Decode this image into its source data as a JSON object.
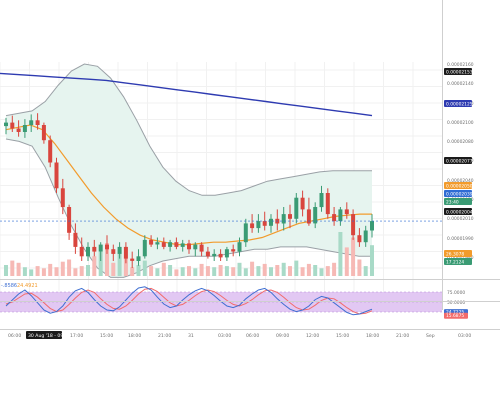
{
  "chart_data": {
    "type": "candlestick",
    "title": "",
    "colors": {
      "up": "#3a9b74",
      "down": "#d9453d",
      "ma_long": "#2e3bb1",
      "ma_short": "#f29b2c",
      "bands": "#9aa0a6",
      "band_fill": "#e6f4ef",
      "stoch_k": "#3f6fd1",
      "stoch_d": "#f26b6b",
      "stoch_band": "#e2c8f3",
      "vol_up": "#a8dac7",
      "vol_down": "#f6b9b5",
      "current_price": "#2f6bd3"
    },
    "time_axis": {
      "ticks": [
        "06:00",
        "30 Aug '18 - 09:30",
        "17:00",
        "15:00",
        "18:00",
        "21:00",
        "31",
        "03:00",
        "06:00",
        "09:00",
        "12:00",
        "15:00",
        "18:00",
        "21:00",
        "Sep",
        "03:00"
      ],
      "highlighted_tick": "30 Aug '18 - 09:30"
    },
    "price_axis": {
      "ylim": [
        1.81e-05,
        2.17e-05
      ],
      "ticks": [
        "0.00002160",
        "0.00002140",
        "0.00002120",
        "0.00002100",
        "0.00002080",
        "0.00002060",
        "0.00002040",
        "0.00002020",
        "0.00002010",
        "0.00001990",
        "0.00001980"
      ],
      "labels": [
        {
          "text": "0.00002153",
          "value": 2.153e-05,
          "color": "#1b1b1b"
        },
        {
          "text": "0.00002125",
          "value": 2.125e-05,
          "color": "#2e3bb1"
        },
        {
          "text": "0.00002077",
          "value": 2.077e-05,
          "color": "#1b1b1b"
        },
        {
          "text": "0.00002050",
          "value": 2.05e-05,
          "color": "#f29b2c"
        },
        {
          "text": "0.00002039",
          "value": 2.039e-05,
          "color": "#2f6bd3"
        },
        {
          "text": "23:40",
          "value": 2.031e-05,
          "color": "#3a9b74"
        },
        {
          "text": "0.00002004",
          "value": 2.004e-05,
          "color": "#1b1b1b"
        },
        {
          "text": "26.3078",
          "value": 1.981e-05,
          "color": "#f29b2c"
        },
        {
          "text": "17.2124",
          "value": 1.972e-05,
          "color": "#3a9b74"
        }
      ]
    },
    "candles": [
      {
        "o": 0.0002115,
        "h": 0.0002122,
        "l": 0.0002108,
        "c": 0.0002118
      },
      {
        "o": 0.0002118,
        "h": 0.0002124,
        "l": 0.000211,
        "c": 0.0002113
      },
      {
        "o": 0.0002113,
        "h": 0.000212,
        "l": 0.0002106,
        "c": 0.000211
      },
      {
        "o": 0.000211,
        "h": 0.0002121,
        "l": 0.0002105,
        "c": 0.0002116
      },
      {
        "o": 0.0002116,
        "h": 0.0002125,
        "l": 0.000211,
        "c": 0.000212
      },
      {
        "o": 0.000212,
        "h": 0.0002126,
        "l": 0.0002112,
        "c": 0.0002116
      },
      {
        "o": 0.0002116,
        "h": 0.0002118,
        "l": 0.00021,
        "c": 0.0002103
      },
      {
        "o": 0.0002103,
        "h": 0.0002107,
        "l": 0.000208,
        "c": 0.0002084
      },
      {
        "o": 0.0002084,
        "h": 0.0002088,
        "l": 0.0002058,
        "c": 0.0002062
      },
      {
        "o": 0.0002062,
        "h": 0.000207,
        "l": 0.000204,
        "c": 0.0002046
      },
      {
        "o": 0.0002046,
        "h": 0.0002048,
        "l": 0.0002018,
        "c": 0.0002024
      },
      {
        "o": 0.0002024,
        "h": 0.0002032,
        "l": 0.0002006,
        "c": 0.0002012
      },
      {
        "o": 0.0002012,
        "h": 0.000202,
        "l": 0.0002,
        "c": 0.0002004
      },
      {
        "o": 0.0002004,
        "h": 0.0002016,
        "l": 0.0002,
        "c": 0.0002012
      },
      {
        "o": 0.0002012,
        "h": 0.0002018,
        "l": 0.0002004,
        "c": 0.0002008
      },
      {
        "o": 0.0002008,
        "h": 0.0002016,
        "l": 0.0002,
        "c": 0.0002014
      },
      {
        "o": 0.0002014,
        "h": 0.0002022,
        "l": 0.0002006,
        "c": 0.000201
      },
      {
        "o": 0.000201,
        "h": 0.0002014,
        "l": 0.0002,
        "c": 0.0002006
      },
      {
        "o": 0.0002006,
        "h": 0.0002016,
        "l": 0.0002002,
        "c": 0.0002012
      },
      {
        "o": 0.0002012,
        "h": 0.0002016,
        "l": 0.0001998,
        "c": 0.0002002
      },
      {
        "o": 0.0002002,
        "h": 0.0002008,
        "l": 0.0001994,
        "c": 0.0002
      },
      {
        "o": 0.0002,
        "h": 0.000201,
        "l": 0.0001996,
        "c": 0.0002004
      },
      {
        "o": 0.0002004,
        "h": 0.0002022,
        "l": 0.0002002,
        "c": 0.0002018
      },
      {
        "o": 0.0002018,
        "h": 0.0002022,
        "l": 0.0002012,
        "c": 0.0002014
      },
      {
        "o": 0.0002014,
        "h": 0.000202,
        "l": 0.000201,
        "c": 0.0002016
      },
      {
        "o": 0.0002016,
        "h": 0.000202,
        "l": 0.000201,
        "c": 0.0002012
      },
      {
        "o": 0.0002012,
        "h": 0.0002018,
        "l": 0.0002008,
        "c": 0.0002016
      },
      {
        "o": 0.0002016,
        "h": 0.000202,
        "l": 0.000201,
        "c": 0.0002012
      },
      {
        "o": 0.0002012,
        "h": 0.0002018,
        "l": 0.0002008,
        "c": 0.0002015
      },
      {
        "o": 0.0002015,
        "h": 0.0002018,
        "l": 0.0002006,
        "c": 0.000201
      },
      {
        "o": 0.000201,
        "h": 0.0002016,
        "l": 0.0002004,
        "c": 0.0002014
      },
      {
        "o": 0.0002014,
        "h": 0.0002016,
        "l": 0.0002004,
        "c": 0.0002008
      },
      {
        "o": 0.0002008,
        "h": 0.0002012,
        "l": 0.0002002,
        "c": 0.0002004
      },
      {
        "o": 0.0002004,
        "h": 0.000201,
        "l": 0.0002,
        "c": 0.0002006
      },
      {
        "o": 0.0002006,
        "h": 0.000201,
        "l": 0.0002,
        "c": 0.0002003
      },
      {
        "o": 0.0002003,
        "h": 0.0002012,
        "l": 0.0002,
        "c": 0.000201
      },
      {
        "o": 0.000201,
        "h": 0.0002014,
        "l": 0.0002004,
        "c": 0.0002008
      },
      {
        "o": 0.0002008,
        "h": 0.000202,
        "l": 0.0002004,
        "c": 0.0002016
      },
      {
        "o": 0.0002016,
        "h": 0.0002036,
        "l": 0.0002012,
        "c": 0.0002032
      },
      {
        "o": 0.0002032,
        "h": 0.000204,
        "l": 0.0002024,
        "c": 0.0002028
      },
      {
        "o": 0.0002028,
        "h": 0.000204,
        "l": 0.0002024,
        "c": 0.0002034
      },
      {
        "o": 0.0002034,
        "h": 0.0002042,
        "l": 0.0002026,
        "c": 0.000203
      },
      {
        "o": 0.000203,
        "h": 0.000204,
        "l": 0.0002024,
        "c": 0.0002036
      },
      {
        "o": 0.0002036,
        "h": 0.0002044,
        "l": 0.0002026,
        "c": 0.0002032
      },
      {
        "o": 0.0002032,
        "h": 0.0002046,
        "l": 0.0002026,
        "c": 0.000204
      },
      {
        "o": 0.000204,
        "h": 0.0002048,
        "l": 0.0002028,
        "c": 0.0002036
      },
      {
        "o": 0.0002036,
        "h": 0.0002058,
        "l": 0.0002032,
        "c": 0.0002054
      },
      {
        "o": 0.0002054,
        "h": 0.000206,
        "l": 0.0002038,
        "c": 0.0002044
      },
      {
        "o": 0.0002044,
        "h": 0.0002054,
        "l": 0.000203,
        "c": 0.0002032
      },
      {
        "o": 0.0002032,
        "h": 0.000205,
        "l": 0.0002028,
        "c": 0.0002046
      },
      {
        "o": 0.0002046,
        "h": 0.0002064,
        "l": 0.0002042,
        "c": 0.0002058
      },
      {
        "o": 0.0002058,
        "h": 0.0002062,
        "l": 0.0002036,
        "c": 0.000204
      },
      {
        "o": 0.000204,
        "h": 0.0002046,
        "l": 0.000203,
        "c": 0.0002034
      },
      {
        "o": 0.0002034,
        "h": 0.0002046,
        "l": 0.000203,
        "c": 0.0002044
      },
      {
        "o": 0.0002044,
        "h": 0.000205,
        "l": 0.0002036,
        "c": 0.000204
      },
      {
        "o": 0.000204,
        "h": 0.0002044,
        "l": 0.0002018,
        "c": 0.0002022
      },
      {
        "o": 0.0002022,
        "h": 0.0002028,
        "l": 0.0002012,
        "c": 0.0002016
      },
      {
        "o": 0.0002016,
        "h": 0.000203,
        "l": 0.0002012,
        "c": 0.0002026
      },
      {
        "o": 0.0002026,
        "h": 0.000204,
        "l": 0.000202,
        "c": 0.0002034
      }
    ],
    "moving_average_long": [
      0.000216,
      0.0002159,
      0.0002158,
      0.0002157,
      0.0002156,
      0.0002155,
      0.0002154,
      0.0002152,
      0.000215,
      0.0002148,
      0.0002146,
      0.0002144,
      0.0002142,
      0.000214,
      0.0002138,
      0.0002136,
      0.0002134,
      0.0002132,
      0.000213,
      0.0002128,
      0.0002126,
      0.0002124
    ],
    "moving_average_short": [
      0.0002112,
      0.0002114,
      0.0002116,
      0.0002112,
      0.00021,
      0.0002086,
      0.0002072,
      0.0002058,
      0.0002046,
      0.0002036,
      0.0002028,
      0.0002022,
      0.0002018,
      0.0002016,
      0.0002014,
      0.0002014,
      0.0002015,
      0.0002016,
      0.0002016,
      0.0002017,
      0.0002018,
      0.000202,
      0.0002024,
      0.0002028,
      0.0002032,
      0.0002034,
      0.0002036,
      0.0002038,
      0.0002039,
      0.000204,
      0.000204
    ],
    "bands_upper": [
      0.0002124,
      0.0002126,
      0.0002128,
      0.0002136,
      0.000215,
      0.0002162,
      0.0002168,
      0.0002166,
      0.0002156,
      0.000214,
      0.000212,
      0.0002098,
      0.000208,
      0.0002068,
      0.000206,
      0.0002056,
      0.0002056,
      0.0002058,
      0.000206,
      0.0002064,
      0.0002068,
      0.000207,
      0.0002072,
      0.0002074,
      0.0002076,
      0.0002077,
      0.0002077,
      0.0002077,
      0.0002077
    ],
    "bands_lower": [
      0.0002104,
      0.0002102,
      0.0002098,
      0.000208,
      0.0002054,
      0.000203,
      0.000201,
      0.0001994,
      0.0001986,
      0.0001986,
      0.000199,
      0.0001996,
      0.0002,
      0.0002002,
      0.0002004,
      0.0002004,
      0.0002004,
      0.0002006,
      0.0002008,
      0.000201,
      0.000201,
      0.0002012,
      0.0002012,
      0.0002012,
      0.000201,
      0.0002008,
      0.0002006,
      0.0002004,
      0.0002004
    ],
    "volume": [
      10,
      14,
      12,
      8,
      6,
      9,
      7,
      11,
      8,
      13,
      15,
      7,
      9,
      10,
      18,
      22,
      30,
      12,
      24,
      16,
      8,
      10,
      14,
      9,
      7,
      12,
      10,
      6,
      8,
      9,
      7,
      11,
      9,
      8,
      10,
      9,
      8,
      12,
      7,
      13,
      9,
      11,
      8,
      10,
      12,
      9,
      14,
      8,
      11,
      10,
      7,
      9,
      12,
      40,
      26,
      35,
      15,
      9,
      28
    ],
    "stochastic": {
      "k_label": "-.8586",
      "d_label": "24.4921",
      "levels": {
        "upper": "75.0000",
        "mid": "50.0000",
        "lower": "25.0000"
      },
      "k": [
        40,
        55,
        70,
        80,
        66,
        48,
        30,
        22,
        26,
        40,
        62,
        78,
        84,
        74,
        56,
        40,
        30,
        28,
        38,
        55,
        72,
        85,
        88,
        80,
        62,
        45,
        36,
        40,
        55,
        68,
        78,
        84,
        78,
        66,
        52,
        40,
        36,
        42,
        58,
        70,
        80,
        84,
        74,
        58,
        44,
        32,
        26,
        30,
        40,
        56,
        64,
        60,
        48,
        36,
        24,
        18,
        20,
        26,
        32
      ],
      "d": [
        45,
        50,
        60,
        70,
        72,
        62,
        48,
        34,
        26,
        30,
        44,
        60,
        74,
        80,
        74,
        58,
        44,
        34,
        32,
        40,
        54,
        70,
        82,
        84,
        76,
        62,
        48,
        40,
        44,
        54,
        66,
        76,
        80,
        76,
        66,
        54,
        44,
        40,
        46,
        56,
        68,
        78,
        80,
        74,
        62,
        48,
        36,
        30,
        32,
        42,
        54,
        60,
        58,
        48,
        36,
        26,
        20,
        22,
        28
      ],
      "yticks": [
        "75.0000",
        "50.0000",
        "25.0000"
      ],
      "current_labels": [
        {
          "text": "24.7225",
          "color": "#3f6fd1"
        },
        {
          "text": "15.6875",
          "color": "#f26b6b"
        }
      ]
    }
  }
}
